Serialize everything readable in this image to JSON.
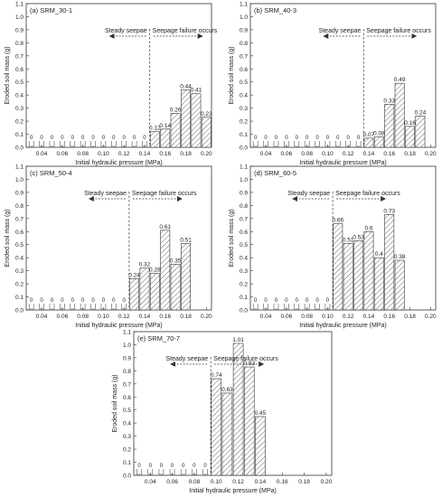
{
  "chart_data": [
    {
      "type": "bar",
      "panel_label": "(a) SRM_30-1",
      "ylabel": "Eroded soil mass (g)",
      "xlabel": "Initial hydraulic pressure (MPa)",
      "xlim": [
        0.025,
        0.205
      ],
      "ylim": [
        0,
        1.1
      ],
      "xticks": [
        "0.04",
        "0.06",
        "0.08",
        "0.10",
        "0.12",
        "0.14",
        "0.16",
        "0.18",
        "0.20"
      ],
      "yticks": [
        "0.0",
        "0.1",
        "0.2",
        "0.3",
        "0.4",
        "0.5",
        "0.6",
        "0.7",
        "0.8",
        "0.9",
        "1.0",
        "1.1"
      ],
      "zero_x": [
        0.03,
        0.04,
        0.05,
        0.06,
        0.07,
        0.08,
        0.09,
        0.1,
        0.11,
        0.12,
        0.13,
        0.14
      ],
      "bars": [
        {
          "x": 0.15,
          "y": 0.12,
          "label": "0.12"
        },
        {
          "x": 0.16,
          "y": 0.14,
          "label": "0.14"
        },
        {
          "x": 0.17,
          "y": 0.26,
          "label": "0.26"
        },
        {
          "x": 0.18,
          "y": 0.44,
          "label": "0.44"
        },
        {
          "x": 0.19,
          "y": 0.41,
          "label": "0.41"
        },
        {
          "x": 0.2,
          "y": 0.23,
          "label": "0.23"
        }
      ],
      "divider_x": 0.145,
      "left_text": "Steady seepae",
      "right_text": "Seepage failure occurs"
    },
    {
      "type": "bar",
      "panel_label": "(b) SRM_40-3",
      "ylabel": "Eroded soil mass (g)",
      "xlabel": "Initial hydraulic pressure (MPa)",
      "xlim": [
        0.025,
        0.205
      ],
      "ylim": [
        0,
        1.1
      ],
      "xticks": [
        "0.04",
        "0.06",
        "0.08",
        "0.10",
        "0.12",
        "0.14",
        "0.16",
        "0.18",
        "0.20"
      ],
      "yticks": [
        "0.0",
        "0.1",
        "0.2",
        "0.3",
        "0.4",
        "0.5",
        "0.6",
        "0.7",
        "0.8",
        "0.9",
        "1.0",
        "1.1"
      ],
      "zero_x": [
        0.03,
        0.04,
        0.05,
        0.06,
        0.07,
        0.08,
        0.09,
        0.1,
        0.11,
        0.12,
        0.13
      ],
      "bars": [
        {
          "x": 0.14,
          "y": 0.07,
          "label": "0.07"
        },
        {
          "x": 0.15,
          "y": 0.08,
          "label": "0.08"
        },
        {
          "x": 0.16,
          "y": 0.33,
          "label": "0.33"
        },
        {
          "x": 0.17,
          "y": 0.49,
          "label": "0.49"
        },
        {
          "x": 0.18,
          "y": 0.16,
          "label": "0.16"
        },
        {
          "x": 0.19,
          "y": 0.24,
          "label": "0.24"
        }
      ],
      "divider_x": 0.135,
      "left_text": "Steady seepae",
      "right_text": "Seepage failure occurs"
    },
    {
      "type": "bar",
      "panel_label": "(c) SRM_50-4",
      "ylabel": "Eroded soil mass (g)",
      "xlabel": "Initial hydraulic pressure (MPa)",
      "xlim": [
        0.025,
        0.205
      ],
      "ylim": [
        0,
        1.1
      ],
      "xticks": [
        "0.04",
        "0.06",
        "0.08",
        "0.10",
        "0.12",
        "0.14",
        "0.16",
        "0.18",
        "0.20"
      ],
      "yticks": [
        "0.0",
        "0.1",
        "0.2",
        "0.3",
        "0.4",
        "0.5",
        "0.6",
        "0.7",
        "0.8",
        "0.9",
        "1.0",
        "1.1"
      ],
      "zero_x": [
        0.03,
        0.04,
        0.05,
        0.06,
        0.07,
        0.08,
        0.09,
        0.1,
        0.11,
        0.12
      ],
      "bars": [
        {
          "x": 0.13,
          "y": 0.24,
          "label": "0.24"
        },
        {
          "x": 0.14,
          "y": 0.32,
          "label": "0.32"
        },
        {
          "x": 0.15,
          "y": 0.28,
          "label": "0.28"
        },
        {
          "x": 0.16,
          "y": 0.61,
          "label": "0.61"
        },
        {
          "x": 0.17,
          "y": 0.35,
          "label": "0.35"
        },
        {
          "x": 0.18,
          "y": 0.51,
          "label": "0.51"
        }
      ],
      "divider_x": 0.125,
      "left_text": "Steady seepae",
      "right_text": "Seepage failure occurs"
    },
    {
      "type": "bar",
      "panel_label": "(d) SRM_60-5",
      "ylabel": "Eroded soil mass (g)",
      "xlabel": "Initial hydraulic pressure (MPa)",
      "xlim": [
        0.025,
        0.205
      ],
      "ylim": [
        0,
        1.1
      ],
      "xticks": [
        "0.04",
        "0.06",
        "0.08",
        "0.10",
        "0.12",
        "0.14",
        "0.16",
        "0.18",
        "0.20"
      ],
      "yticks": [
        "0.0",
        "0.1",
        "0.2",
        "0.3",
        "0.4",
        "0.5",
        "0.6",
        "0.7",
        "0.8",
        "0.9",
        "1.0",
        "1.1"
      ],
      "zero_x": [
        0.03,
        0.04,
        0.05,
        0.06,
        0.07,
        0.08,
        0.09,
        0.1
      ],
      "bars": [
        {
          "x": 0.11,
          "y": 0.66,
          "label": "0.66"
        },
        {
          "x": 0.12,
          "y": 0.51,
          "label": "0.51"
        },
        {
          "x": 0.13,
          "y": 0.53,
          "label": "0.53"
        },
        {
          "x": 0.14,
          "y": 0.6,
          "label": "0.6"
        },
        {
          "x": 0.15,
          "y": 0.4,
          "label": "0.4"
        },
        {
          "x": 0.16,
          "y": 0.73,
          "label": "0.73"
        },
        {
          "x": 0.17,
          "y": 0.38,
          "label": "0.38"
        }
      ],
      "divider_x": 0.105,
      "left_text": "Steady seepae",
      "right_text": "Seepage failure occurs"
    },
    {
      "type": "bar",
      "panel_label": "(e) SRM_70-7",
      "ylabel": "Eroded soil mass (g)",
      "xlabel": "Initial hydraulic pressure (MPa)",
      "xlim": [
        0.025,
        0.205
      ],
      "ylim": [
        0,
        1.1
      ],
      "xticks": [
        "0.04",
        "0.06",
        "0.08",
        "0.10",
        "0.12",
        "0.14",
        "0.16",
        "0.18",
        "0.20"
      ],
      "yticks": [
        "0.0",
        "0.1",
        "0.2",
        "0.3",
        "0.4",
        "0.5",
        "0.6",
        "0.7",
        "0.8",
        "0.9",
        "1.0",
        "1.1"
      ],
      "zero_x": [
        0.03,
        0.04,
        0.05,
        0.06,
        0.07,
        0.08,
        0.09
      ],
      "bars": [
        {
          "x": 0.1,
          "y": 0.74,
          "label": "0.74"
        },
        {
          "x": 0.11,
          "y": 0.63,
          "label": "0.63"
        },
        {
          "x": 0.12,
          "y": 1.01,
          "label": "1.01"
        },
        {
          "x": 0.13,
          "y": 0.83,
          "label": "0.83"
        },
        {
          "x": 0.14,
          "y": 0.45,
          "label": "0.45"
        }
      ],
      "divider_x": 0.095,
      "left_text": "Steady seepae",
      "right_text": "Seepage failure occurs"
    }
  ]
}
